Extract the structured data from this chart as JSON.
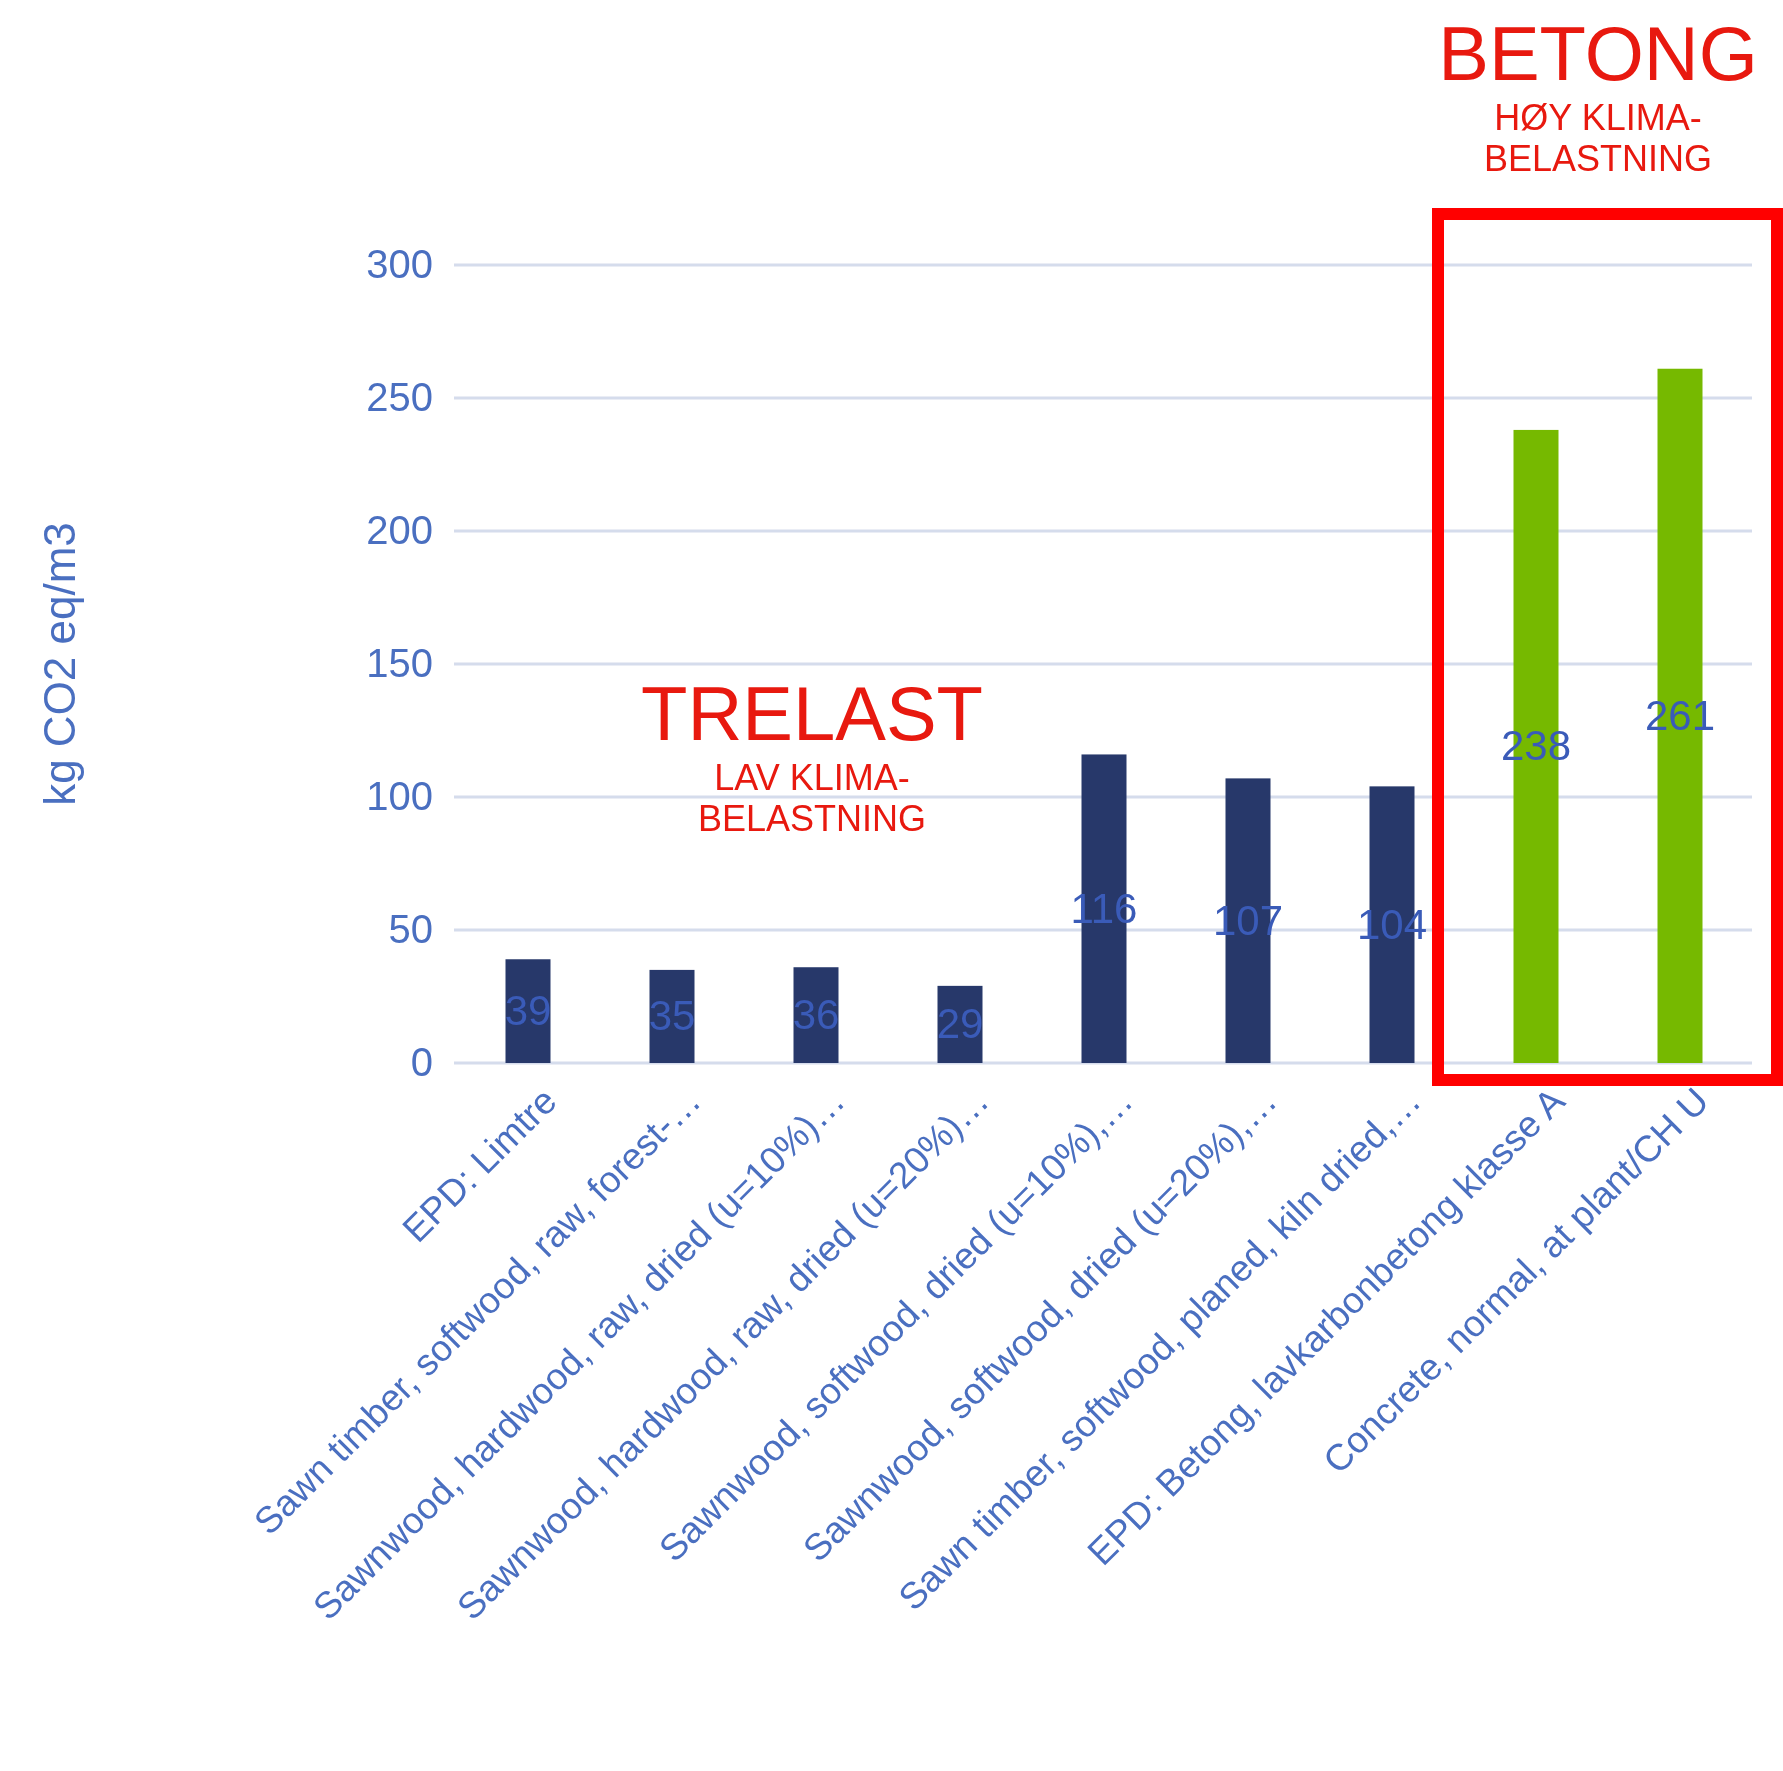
{
  "chart_data": {
    "type": "bar",
    "ylabel": "kg CO2 eq/m3",
    "categories": [
      "EPD: Limtre",
      "Sawn timber, softwood, raw, forest-…",
      "Sawnwood, hardwood, raw, dried (u=10%)…",
      "Sawnwood, hardwood, raw, dried (u=20%)…",
      "Sawnwood, softwood, dried (u=10%),…",
      "Sawnwood, softwood, dried (u=20%),…",
      "Sawn timber, softwood, planed, kiln dried,…",
      "EPD: Betong, lavkarbonbetong klasse A",
      "Concrete, normal, at plant/CH U"
    ],
    "values": [
      39,
      35,
      36,
      29,
      116,
      107,
      104,
      238,
      261
    ],
    "colors": [
      "#27386a",
      "#27386a",
      "#27386a",
      "#27386a",
      "#27386a",
      "#27386a",
      "#27386a",
      "#76b900",
      "#76b900"
    ],
    "ylim": [
      0,
      300
    ],
    "yticks": [
      0,
      50,
      100,
      150,
      200,
      250,
      300
    ],
    "grid": "y",
    "data_labels": true,
    "annotations": [
      "TRELAST",
      "LAV KLIMA-\nBELASTNING",
      "BETONG",
      "HØY KLIMA-\nBELASTNING"
    ]
  }
}
